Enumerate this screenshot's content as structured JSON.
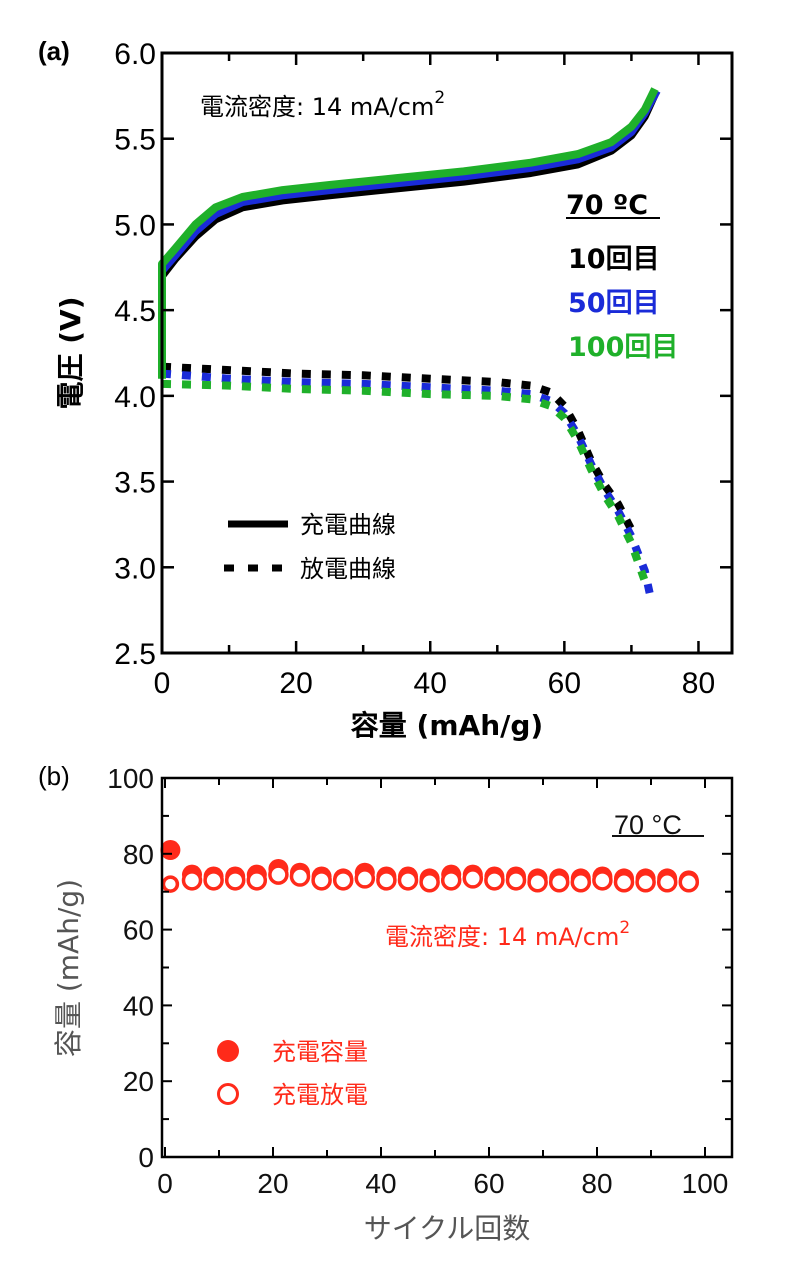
{
  "chart_data": [
    {
      "panel_label": "(a)",
      "type": "line",
      "xlabel": "容量 (mAh/g)",
      "ylabel": "電圧 (V)",
      "xlim": [
        0,
        85
      ],
      "ylim": [
        2.5,
        6.0
      ],
      "xticks": [
        "0",
        "20",
        "40",
        "60",
        "80"
      ],
      "xtick_values": [
        0,
        20,
        40,
        60,
        80
      ],
      "yticks": [
        "2.5",
        "3.0",
        "3.5",
        "4.0",
        "4.5",
        "5.0",
        "5.5",
        "6.0"
      ],
      "ytick_values": [
        2.5,
        3.0,
        3.5,
        4.0,
        4.5,
        5.0,
        5.5,
        6.0
      ],
      "annotation": "電流密度: 14 mA/cm",
      "annotation_sup": "2",
      "temperature": "70 ºC",
      "cycle_legend": [
        {
          "label": "10回目",
          "color": "#000000"
        },
        {
          "label": "50回目",
          "color": "#1a2bd8"
        },
        {
          "label": "100回目",
          "color": "#1fb02a"
        }
      ],
      "style_legend": [
        {
          "label": "充電曲線",
          "style": "solid"
        },
        {
          "label": "放電曲線",
          "style": "dotted"
        }
      ],
      "series": [
        {
          "name": "10回目 充電曲線",
          "color": "#000000",
          "style": "solid",
          "x": [
            0,
            0,
            2,
            5,
            8,
            12,
            18,
            25,
            35,
            45,
            55,
            62,
            67,
            70,
            72,
            73.5
          ],
          "y": [
            4.15,
            4.7,
            4.8,
            4.93,
            5.03,
            5.1,
            5.14,
            5.17,
            5.21,
            5.25,
            5.3,
            5.35,
            5.43,
            5.52,
            5.63,
            5.76
          ]
        },
        {
          "name": "50回目 充電曲線",
          "color": "#1a2bd8",
          "style": "solid",
          "x": [
            0,
            0,
            2,
            5,
            8,
            12,
            18,
            25,
            35,
            45,
            55,
            62,
            67,
            70,
            72,
            73.8
          ],
          "y": [
            4.15,
            4.73,
            4.82,
            4.96,
            5.06,
            5.13,
            5.17,
            5.2,
            5.24,
            5.28,
            5.33,
            5.38,
            5.45,
            5.54,
            5.65,
            5.78
          ]
        },
        {
          "name": "100回目 充電曲線",
          "color": "#1fb02a",
          "style": "solid",
          "x": [
            0,
            0,
            2,
            5,
            8,
            12,
            18,
            25,
            35,
            45,
            55,
            62,
            67,
            70,
            72,
            73.5
          ],
          "y": [
            4.1,
            4.77,
            4.86,
            5.0,
            5.1,
            5.16,
            5.2,
            5.23,
            5.27,
            5.31,
            5.36,
            5.41,
            5.48,
            5.57,
            5.67,
            5.79
          ]
        },
        {
          "name": "10回目 放電曲線",
          "color": "#000000",
          "style": "dotted",
          "x": [
            0,
            10,
            20,
            30,
            40,
            50,
            55,
            58,
            60,
            62,
            64,
            66,
            68,
            70
          ],
          "y": [
            4.17,
            4.15,
            4.13,
            4.12,
            4.1,
            4.08,
            4.06,
            4.02,
            3.94,
            3.8,
            3.62,
            3.48,
            3.37,
            3.22
          ]
        },
        {
          "name": "50回目 放電曲線",
          "color": "#1a2bd8",
          "style": "dotted",
          "x": [
            0,
            10,
            20,
            30,
            40,
            50,
            55,
            58,
            60,
            62,
            64,
            66,
            68,
            70,
            72,
            73
          ],
          "y": [
            4.13,
            4.1,
            4.08,
            4.07,
            4.05,
            4.03,
            4.01,
            3.97,
            3.9,
            3.77,
            3.6,
            3.45,
            3.33,
            3.18,
            2.98,
            2.8
          ]
        },
        {
          "name": "100回目 放電曲線",
          "color": "#1fb02a",
          "style": "dotted",
          "x": [
            0,
            10,
            20,
            30,
            40,
            50,
            55,
            58,
            60,
            62,
            64,
            66,
            68,
            70,
            72
          ],
          "y": [
            4.07,
            4.06,
            4.04,
            4.03,
            4.01,
            4.0,
            3.98,
            3.94,
            3.87,
            3.74,
            3.57,
            3.42,
            3.3,
            3.14,
            2.92
          ]
        }
      ]
    },
    {
      "panel_label": "(b)",
      "type": "scatter",
      "xlabel": "サイクル回数",
      "ylabel": "容量 (mAh/g)",
      "xlim": [
        0,
        105
      ],
      "ylim": [
        0,
        100
      ],
      "xticks": [
        "0",
        "20",
        "40",
        "60",
        "80",
        "100"
      ],
      "xtick_values": [
        0,
        20,
        40,
        60,
        80,
        100
      ],
      "yticks": [
        "0",
        "20",
        "40",
        "60",
        "80",
        "100"
      ],
      "ytick_values": [
        0,
        20,
        40,
        60,
        80,
        100
      ],
      "temperature": "70 °C",
      "annotation": "電流密度: 14 mA/cm",
      "annotation_sup": "2",
      "marker_color": "#ff2a1a",
      "legend": [
        {
          "label": "充電容量",
          "marker": "filled-circle"
        },
        {
          "label": "充電放電",
          "marker": "open-circle"
        }
      ],
      "series": [
        {
          "name": "充電容量",
          "marker": "filled-circle",
          "x": [
            1,
            5,
            9,
            13,
            17,
            21,
            25,
            29,
            33,
            37,
            41,
            45,
            49,
            53,
            57,
            61,
            65,
            69,
            73,
            77,
            81,
            85,
            89,
            93,
            97
          ],
          "y": [
            81,
            74.5,
            74,
            74,
            74.5,
            76,
            75,
            74,
            73.5,
            75,
            74,
            74,
            73.5,
            74.5,
            74.5,
            74,
            74,
            73.5,
            73.5,
            73.5,
            74,
            73.5,
            73.5,
            73.5,
            73
          ]
        },
        {
          "name": "充電放電",
          "marker": "open-circle",
          "x": [
            1,
            5,
            9,
            13,
            17,
            21,
            25,
            29,
            33,
            37,
            41,
            45,
            49,
            53,
            57,
            61,
            65,
            69,
            73,
            77,
            81,
            85,
            89,
            93,
            97
          ],
          "y": [
            72,
            73,
            73,
            73,
            73,
            74.5,
            74,
            73,
            73,
            73.5,
            73,
            73,
            72.5,
            73,
            73.5,
            73,
            73,
            72.5,
            72.5,
            72.5,
            73,
            72.5,
            72.5,
            72.5,
            72.5
          ]
        }
      ]
    }
  ]
}
